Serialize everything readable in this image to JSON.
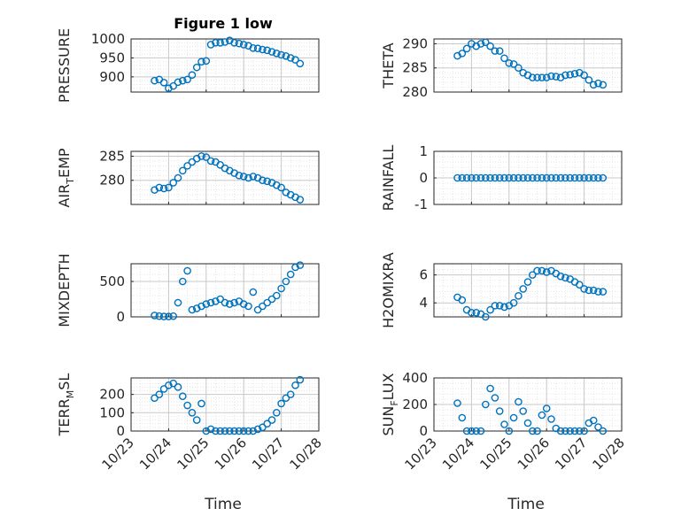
{
  "figure": {
    "title": "Figure 1 low",
    "marker_color": "#0072bd"
  },
  "chart_data": [
    {
      "type": "scatter",
      "ylabel": "PRESSURE",
      "ylabel_sub": null,
      "xlim": [
        "10/23",
        "10/28"
      ],
      "ylim": [
        860,
        1000
      ],
      "yticks": [
        {
          "v": 900,
          "label": "900"
        },
        {
          "v": 950,
          "label": "950"
        },
        {
          "v": 1000,
          "label": "1000"
        }
      ],
      "x": [
        "10/23 15:00",
        "10/23 18:00",
        "10/23 21:00",
        "10/24 00:00",
        "10/24 03:00",
        "10/24 06:00",
        "10/24 09:00",
        "10/24 12:00",
        "10/24 15:00",
        "10/24 18:00",
        "10/24 21:00",
        "10/25 00:00",
        "10/25 03:00",
        "10/25 06:00",
        "10/25 09:00",
        "10/25 12:00",
        "10/25 15:00",
        "10/25 18:00",
        "10/25 21:00",
        "10/26 00:00",
        "10/26 03:00",
        "10/26 06:00",
        "10/26 09:00",
        "10/26 12:00",
        "10/26 15:00",
        "10/26 18:00",
        "10/26 21:00",
        "10/27 00:00",
        "10/27 03:00",
        "10/27 06:00",
        "10/27 09:00",
        "10/27 12:00"
      ],
      "y": [
        890,
        893,
        885,
        870,
        876,
        886,
        890,
        893,
        905,
        925,
        940,
        942,
        985,
        990,
        990,
        992,
        996,
        990,
        988,
        985,
        982,
        976,
        975,
        972,
        970,
        966,
        962,
        958,
        955,
        950,
        945,
        935
      ]
    },
    {
      "type": "scatter",
      "ylabel": "THETA",
      "ylabel_sub": null,
      "xlim": [
        "10/23",
        "10/28"
      ],
      "ylim": [
        280,
        291
      ],
      "yticks": [
        {
          "v": 280,
          "label": "280"
        },
        {
          "v": 285,
          "label": "285"
        },
        {
          "v": 290,
          "label": "290"
        }
      ],
      "x": [
        "10/23 15:00",
        "10/23 18:00",
        "10/23 21:00",
        "10/24 00:00",
        "10/24 03:00",
        "10/24 06:00",
        "10/24 09:00",
        "10/24 12:00",
        "10/24 15:00",
        "10/24 18:00",
        "10/24 21:00",
        "10/25 00:00",
        "10/25 03:00",
        "10/25 06:00",
        "10/25 09:00",
        "10/25 12:00",
        "10/25 15:00",
        "10/25 18:00",
        "10/25 21:00",
        "10/26 00:00",
        "10/26 03:00",
        "10/26 06:00",
        "10/26 09:00",
        "10/26 12:00",
        "10/26 15:00",
        "10/26 18:00",
        "10/26 21:00",
        "10/27 00:00",
        "10/27 03:00",
        "10/27 06:00",
        "10/27 09:00",
        "10/27 12:00"
      ],
      "y": [
        287.5,
        288,
        289,
        290,
        289.5,
        290,
        290.3,
        289.5,
        288.5,
        288.5,
        287,
        286,
        285.8,
        285,
        284,
        283.5,
        283,
        283,
        283,
        283,
        283.3,
        283.2,
        283,
        283.5,
        283.6,
        283.8,
        284,
        283.5,
        282.5,
        281.5,
        281.8,
        281.5
      ]
    },
    {
      "type": "scatter",
      "ylabel": "AIR",
      "ylabel_sub": "T",
      "ylabel_rest": "EMP",
      "xlim": [
        "10/23",
        "10/28"
      ],
      "ylim": [
        275,
        286
      ],
      "yticks": [
        {
          "v": 280,
          "label": "280"
        },
        {
          "v": 285,
          "label": "285"
        }
      ],
      "x": [
        "10/23 15:00",
        "10/23 18:00",
        "10/23 21:00",
        "10/24 00:00",
        "10/24 03:00",
        "10/24 06:00",
        "10/24 09:00",
        "10/24 12:00",
        "10/24 15:00",
        "10/24 18:00",
        "10/24 21:00",
        "10/25 00:00",
        "10/25 03:00",
        "10/25 06:00",
        "10/25 09:00",
        "10/25 12:00",
        "10/25 15:00",
        "10/25 18:00",
        "10/25 21:00",
        "10/26 00:00",
        "10/26 03:00",
        "10/26 06:00",
        "10/26 09:00",
        "10/26 12:00",
        "10/26 15:00",
        "10/26 18:00",
        "10/26 21:00",
        "10/27 00:00",
        "10/27 03:00",
        "10/27 06:00",
        "10/27 09:00",
        "10/27 12:00"
      ],
      "y": [
        278,
        278.5,
        278.3,
        278.5,
        279.5,
        280.5,
        282,
        283,
        283.8,
        284.5,
        285,
        284.8,
        284,
        283.8,
        283.2,
        282.5,
        282,
        281.5,
        281,
        280.8,
        280.5,
        280.8,
        280.5,
        280,
        279.8,
        279.5,
        279,
        278.5,
        277.5,
        277,
        276.5,
        276
      ]
    },
    {
      "type": "scatter",
      "ylabel": "RAINFALL",
      "ylabel_sub": null,
      "xlim": [
        "10/23",
        "10/28"
      ],
      "ylim": [
        -1,
        1
      ],
      "yticks": [
        {
          "v": -1,
          "label": "-1"
        },
        {
          "v": 0,
          "label": "0"
        },
        {
          "v": 1,
          "label": "1"
        }
      ],
      "x": [
        "10/23 15:00",
        "10/23 18:00",
        "10/23 21:00",
        "10/24 00:00",
        "10/24 03:00",
        "10/24 06:00",
        "10/24 09:00",
        "10/24 12:00",
        "10/24 15:00",
        "10/24 18:00",
        "10/24 21:00",
        "10/25 00:00",
        "10/25 03:00",
        "10/25 06:00",
        "10/25 09:00",
        "10/25 12:00",
        "10/25 15:00",
        "10/25 18:00",
        "10/25 21:00",
        "10/26 00:00",
        "10/26 03:00",
        "10/26 06:00",
        "10/26 09:00",
        "10/26 12:00",
        "10/26 15:00",
        "10/26 18:00",
        "10/26 21:00",
        "10/27 00:00",
        "10/27 03:00",
        "10/27 06:00",
        "10/27 09:00",
        "10/27 12:00"
      ],
      "y": [
        0,
        0,
        0,
        0,
        0,
        0,
        0,
        0,
        0,
        0,
        0,
        0,
        0,
        0,
        0,
        0,
        0,
        0,
        0,
        0,
        0,
        0,
        0,
        0,
        0,
        0,
        0,
        0,
        0,
        0,
        0,
        0
      ]
    },
    {
      "type": "scatter",
      "ylabel": "MIXDEPTH",
      "ylabel_sub": null,
      "xlim": [
        "10/23",
        "10/28"
      ],
      "ylim": [
        0,
        750
      ],
      "yticks": [
        {
          "v": 0,
          "label": "0"
        },
        {
          "v": 500,
          "label": "500"
        }
      ],
      "x": [
        "10/23 15:00",
        "10/23 18:00",
        "10/23 21:00",
        "10/24 00:00",
        "10/24 03:00",
        "10/24 06:00",
        "10/24 09:00",
        "10/24 12:00",
        "10/24 15:00",
        "10/24 18:00",
        "10/24 21:00",
        "10/25 00:00",
        "10/25 03:00",
        "10/25 06:00",
        "10/25 09:00",
        "10/25 12:00",
        "10/25 15:00",
        "10/25 18:00",
        "10/25 21:00",
        "10/26 00:00",
        "10/26 03:00",
        "10/26 06:00",
        "10/26 09:00",
        "10/26 12:00",
        "10/26 15:00",
        "10/26 18:00",
        "10/26 21:00",
        "10/27 00:00",
        "10/27 03:00",
        "10/27 06:00",
        "10/27 09:00",
        "10/27 12:00"
      ],
      "y": [
        20,
        10,
        5,
        5,
        10,
        200,
        500,
        650,
        100,
        120,
        150,
        180,
        200,
        220,
        250,
        200,
        180,
        200,
        220,
        180,
        150,
        350,
        100,
        150,
        200,
        250,
        300,
        400,
        500,
        600,
        700,
        730
      ]
    },
    {
      "type": "scatter",
      "ylabel": "H2OMIXRA",
      "ylabel_sub": null,
      "xlim": [
        "10/23",
        "10/28"
      ],
      "ylim": [
        3,
        6.8
      ],
      "yticks": [
        {
          "v": 4,
          "label": "4"
        },
        {
          "v": 6,
          "label": "6"
        }
      ],
      "x": [
        "10/23 15:00",
        "10/23 18:00",
        "10/23 21:00",
        "10/24 00:00",
        "10/24 03:00",
        "10/24 06:00",
        "10/24 09:00",
        "10/24 12:00",
        "10/24 15:00",
        "10/24 18:00",
        "10/24 21:00",
        "10/25 00:00",
        "10/25 03:00",
        "10/25 06:00",
        "10/25 09:00",
        "10/25 12:00",
        "10/25 15:00",
        "10/25 18:00",
        "10/25 21:00",
        "10/26 00:00",
        "10/26 03:00",
        "10/26 06:00",
        "10/26 09:00",
        "10/26 12:00",
        "10/26 15:00",
        "10/26 18:00",
        "10/26 21:00",
        "10/27 00:00",
        "10/27 03:00",
        "10/27 06:00",
        "10/27 09:00",
        "10/27 12:00"
      ],
      "y": [
        4.4,
        4.2,
        3.5,
        3.3,
        3.3,
        3.2,
        3.0,
        3.5,
        3.8,
        3.8,
        3.7,
        3.8,
        4.0,
        4.5,
        5.0,
        5.5,
        6.0,
        6.3,
        6.3,
        6.2,
        6.3,
        6.1,
        5.9,
        5.8,
        5.7,
        5.5,
        5.3,
        5.0,
        4.9,
        4.9,
        4.8,
        4.8
      ]
    },
    {
      "type": "scatter",
      "ylabel": "TERR",
      "ylabel_sub": "M",
      "ylabel_rest": "SL",
      "xlim": [
        "10/23",
        "10/28"
      ],
      "ylim": [
        0,
        290
      ],
      "yticks": [
        {
          "v": 0,
          "label": "0"
        },
        {
          "v": 100,
          "label": "100"
        },
        {
          "v": 200,
          "label": "200"
        }
      ],
      "x": [
        "10/23 15:00",
        "10/23 18:00",
        "10/23 21:00",
        "10/24 00:00",
        "10/24 03:00",
        "10/24 06:00",
        "10/24 09:00",
        "10/24 12:00",
        "10/24 15:00",
        "10/24 18:00",
        "10/24 21:00",
        "10/25 00:00",
        "10/25 03:00",
        "10/25 06:00",
        "10/25 09:00",
        "10/25 12:00",
        "10/25 15:00",
        "10/25 18:00",
        "10/25 21:00",
        "10/26 00:00",
        "10/26 03:00",
        "10/26 06:00",
        "10/26 09:00",
        "10/26 12:00",
        "10/26 15:00",
        "10/26 18:00",
        "10/26 21:00",
        "10/27 00:00",
        "10/27 03:00",
        "10/27 06:00",
        "10/27 09:00",
        "10/27 12:00"
      ],
      "y": [
        180,
        200,
        230,
        250,
        260,
        240,
        190,
        140,
        100,
        60,
        150,
        0,
        10,
        0,
        0,
        0,
        0,
        0,
        0,
        0,
        0,
        0,
        10,
        20,
        40,
        60,
        100,
        150,
        180,
        200,
        250,
        280
      ]
    },
    {
      "type": "scatter",
      "ylabel": "SUN",
      "ylabel_sub": "F",
      "ylabel_rest": "LUX",
      "xlim": [
        "10/23",
        "10/28"
      ],
      "ylim": [
        0,
        400
      ],
      "yticks": [
        {
          "v": 0,
          "label": "0"
        },
        {
          "v": 200,
          "label": "200"
        },
        {
          "v": 400,
          "label": "400"
        }
      ],
      "x": [
        "10/23 15:00",
        "10/23 18:00",
        "10/23 21:00",
        "10/24 00:00",
        "10/24 03:00",
        "10/24 06:00",
        "10/24 09:00",
        "10/24 12:00",
        "10/24 15:00",
        "10/24 18:00",
        "10/24 21:00",
        "10/25 00:00",
        "10/25 03:00",
        "10/25 06:00",
        "10/25 09:00",
        "10/25 12:00",
        "10/25 15:00",
        "10/25 18:00",
        "10/25 21:00",
        "10/26 00:00",
        "10/26 03:00",
        "10/26 06:00",
        "10/26 09:00",
        "10/26 12:00",
        "10/26 15:00",
        "10/26 18:00",
        "10/26 21:00",
        "10/27 00:00",
        "10/27 03:00",
        "10/27 06:00",
        "10/27 09:00",
        "10/27 12:00"
      ],
      "y": [
        210,
        100,
        0,
        0,
        0,
        0,
        200,
        320,
        250,
        150,
        50,
        0,
        100,
        220,
        150,
        60,
        0,
        0,
        120,
        170,
        90,
        20,
        0,
        0,
        0,
        0,
        0,
        0,
        60,
        80,
        30,
        0
      ]
    }
  ],
  "xaxis": {
    "ticks": [
      "10/23",
      "10/24",
      "10/25",
      "10/26",
      "10/27",
      "10/28"
    ],
    "label": "Time"
  }
}
